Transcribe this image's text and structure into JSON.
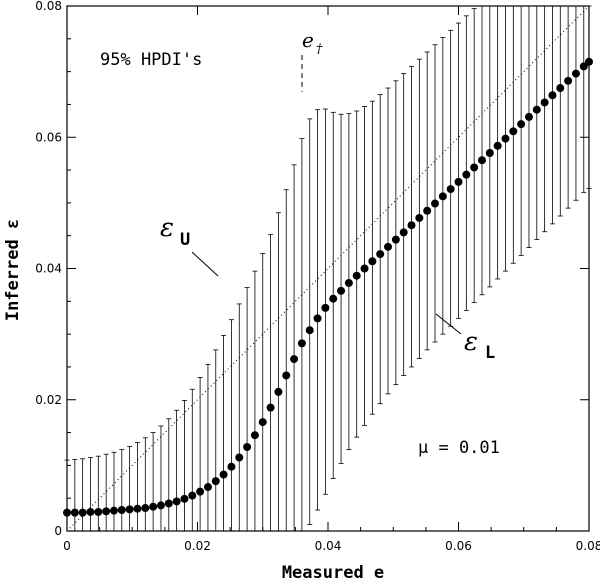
{
  "chart_data": {
    "type": "scatter",
    "xlabel": "Measured e",
    "ylabel": "Inferred ε",
    "xlim": [
      0,
      0.08
    ],
    "ylim": [
      0,
      0.08
    ],
    "x_ticks": [
      "0",
      "0.02",
      "0.04",
      "0.06",
      "0.08"
    ],
    "y_ticks": [
      "0",
      "0.02",
      "0.04",
      "0.06",
      "0.08"
    ],
    "grid": false,
    "annotations": {
      "hpdi": "95% HPDI's",
      "e_dagger_main": "e",
      "e_dagger_sub": "†",
      "eps_u_main": "ε",
      "eps_u_sub": "U",
      "eps_l_main": "ε",
      "eps_l_sub": "L",
      "mu": "μ  =  0.01"
    },
    "e_dagger": 0.036,
    "identity_line": true,
    "series": [
      {
        "x": [
          0.0,
          0.0012,
          0.0024,
          0.0036,
          0.0048,
          0.006,
          0.0072,
          0.0084,
          0.0096,
          0.0108,
          0.012,
          0.0132,
          0.0144,
          0.0156,
          0.0168,
          0.018,
          0.0192,
          0.0204,
          0.0216,
          0.0228,
          0.024,
          0.0252,
          0.0264,
          0.0276,
          0.0288,
          0.03,
          0.0312,
          0.0324,
          0.0336,
          0.0348,
          0.036,
          0.0372,
          0.0384,
          0.0396,
          0.0408,
          0.042,
          0.0432,
          0.0444,
          0.0456,
          0.0468,
          0.048,
          0.0492,
          0.0504,
          0.0516,
          0.0528,
          0.054,
          0.0552,
          0.0564,
          0.0576,
          0.0588,
          0.06,
          0.0612,
          0.0624,
          0.0636,
          0.0648,
          0.066,
          0.0672,
          0.0684,
          0.0696,
          0.0708,
          0.072,
          0.0732,
          0.0744,
          0.0756,
          0.0768,
          0.078,
          0.0792,
          0.08
        ],
        "y": [
          0.0028,
          0.0028,
          0.0028,
          0.0029,
          0.0029,
          0.003,
          0.0031,
          0.0032,
          0.0033,
          0.0034,
          0.0035,
          0.0037,
          0.0039,
          0.0042,
          0.0045,
          0.0049,
          0.0054,
          0.006,
          0.0067,
          0.0076,
          0.0086,
          0.0098,
          0.0112,
          0.0128,
          0.0146,
          0.0166,
          0.0188,
          0.0212,
          0.0237,
          0.0262,
          0.0286,
          0.0306,
          0.0324,
          0.034,
          0.0354,
          0.0366,
          0.0378,
          0.0389,
          0.04,
          0.0411,
          0.0422,
          0.0433,
          0.0444,
          0.0455,
          0.0466,
          0.0477,
          0.0488,
          0.0499,
          0.051,
          0.0521,
          0.0532,
          0.0543,
          0.0554,
          0.0565,
          0.0576,
          0.0587,
          0.0598,
          0.0609,
          0.062,
          0.0631,
          0.0642,
          0.0653,
          0.0664,
          0.0675,
          0.0686,
          0.0697,
          0.0708,
          0.0715
        ],
        "upper": [
          0.0108,
          0.0109,
          0.011,
          0.0112,
          0.0114,
          0.0117,
          0.012,
          0.0124,
          0.0129,
          0.0135,
          0.0142,
          0.015,
          0.016,
          0.0171,
          0.0184,
          0.0199,
          0.0216,
          0.0234,
          0.0254,
          0.0276,
          0.0298,
          0.0322,
          0.0346,
          0.0371,
          0.0396,
          0.0423,
          0.0452,
          0.0485,
          0.052,
          0.0558,
          0.0598,
          0.0628,
          0.0642,
          0.0643,
          0.0638,
          0.0635,
          0.0636,
          0.064,
          0.0647,
          0.0655,
          0.0665,
          0.0675,
          0.0686,
          0.0697,
          0.0708,
          0.0719,
          0.073,
          0.0741,
          0.0752,
          0.0763,
          0.0774,
          0.0785,
          0.0796,
          0.08,
          0.08,
          0.08,
          0.08,
          0.08,
          0.08,
          0.08,
          0.08,
          0.08,
          0.08,
          0.08,
          0.08,
          0.08,
          0.08,
          0.08
        ],
        "lower": [
          0.0,
          0.0,
          0.0,
          0.0,
          0.0,
          0.0,
          0.0,
          0.0,
          0.0,
          0.0,
          0.0,
          0.0,
          0.0,
          0.0,
          0.0,
          0.0,
          0.0,
          0.0,
          0.0,
          0.0,
          0.0,
          0.0,
          0.0,
          0.0,
          0.0,
          0.0,
          0.0,
          0.0,
          0.0,
          0.0,
          0.0,
          0.001,
          0.0032,
          0.0056,
          0.008,
          0.0103,
          0.0124,
          0.0143,
          0.0161,
          0.0178,
          0.0194,
          0.0209,
          0.0223,
          0.0237,
          0.025,
          0.0263,
          0.0276,
          0.0288,
          0.03,
          0.0312,
          0.0324,
          0.0336,
          0.0348,
          0.036,
          0.0372,
          0.0384,
          0.0396,
          0.0408,
          0.042,
          0.0432,
          0.0444,
          0.0456,
          0.0468,
          0.048,
          0.0492,
          0.0504,
          0.0516,
          0.0522
        ]
      }
    ]
  }
}
